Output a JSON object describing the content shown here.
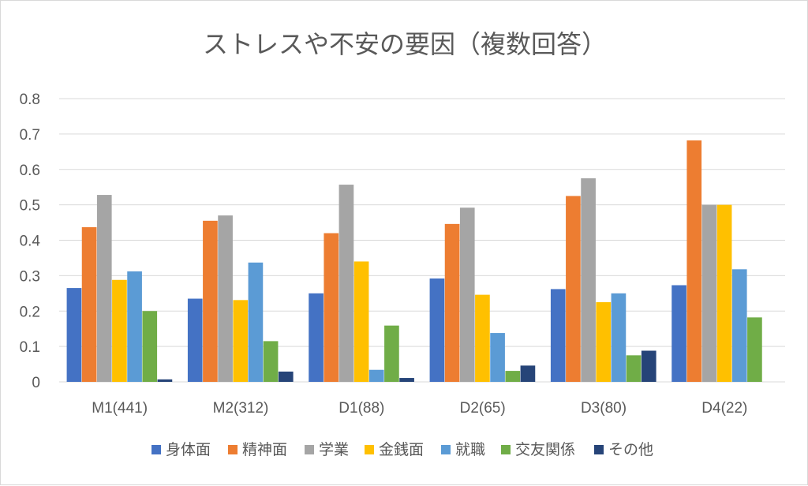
{
  "chart_data": {
    "type": "bar",
    "title": "ストレスや不安の要因（複数回答）",
    "categories": [
      "M1(441)",
      "M2(312)",
      "D1(88)",
      "D2(65)",
      "D3(80)",
      "D4(22)"
    ],
    "ylim": [
      0,
      0.8
    ],
    "yticks": [
      "0",
      "0.1",
      "0.2",
      "0.3",
      "0.4",
      "0.5",
      "0.6",
      "0.7",
      "0.8"
    ],
    "grid": true,
    "legend_position": "bottom",
    "series": [
      {
        "name": "身体面",
        "color": "#4472c4",
        "values": [
          0.265,
          0.235,
          0.25,
          0.292,
          0.262,
          0.273
        ]
      },
      {
        "name": "精神面",
        "color": "#ed7d31",
        "values": [
          0.437,
          0.455,
          0.42,
          0.446,
          0.525,
          0.682
        ]
      },
      {
        "name": "学業",
        "color": "#a5a5a5",
        "values": [
          0.528,
          0.47,
          0.557,
          0.492,
          0.575,
          0.5
        ]
      },
      {
        "name": "金銭面",
        "color": "#ffc000",
        "values": [
          0.288,
          0.231,
          0.34,
          0.246,
          0.225,
          0.5
        ]
      },
      {
        "name": "就職",
        "color": "#5b9bd5",
        "values": [
          0.312,
          0.337,
          0.034,
          0.138,
          0.25,
          0.318
        ]
      },
      {
        "name": "交友関係",
        "color": "#70ad47",
        "values": [
          0.2,
          0.115,
          0.159,
          0.031,
          0.075,
          0.182
        ]
      },
      {
        "name": "その他",
        "color": "#264478",
        "values": [
          0.007,
          0.029,
          0.011,
          0.046,
          0.088,
          0
        ]
      }
    ]
  }
}
